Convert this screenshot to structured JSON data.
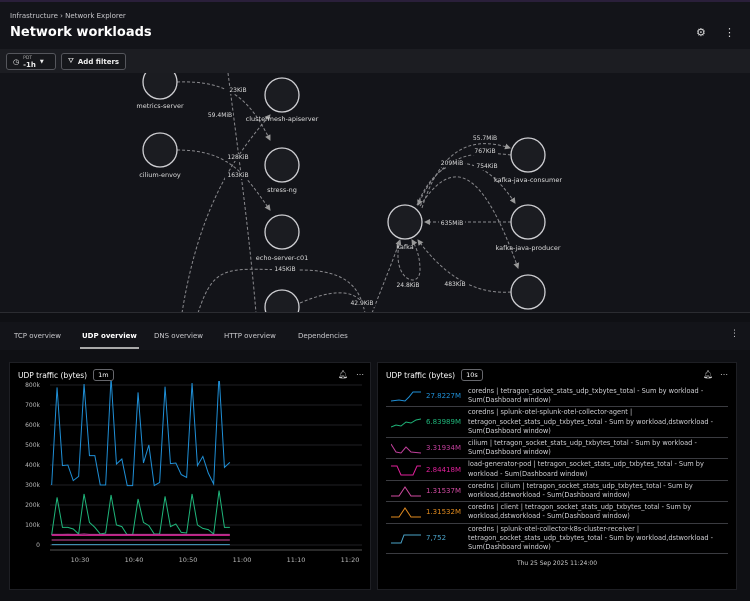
{
  "header": {
    "breadcrumb": [
      "Infrastructure",
      "Network Explorer"
    ],
    "title": "Network workloads",
    "icons": [
      "gear-icon",
      "more-vertical-icon"
    ]
  },
  "toolbar": {
    "timezone": "PDT",
    "time_range": "-1h",
    "add_filters": "Add filters"
  },
  "graph": {
    "nodes": [
      {
        "id": "metrics-server",
        "label": "metrics-server"
      },
      {
        "id": "cilium-envoy",
        "label": "cilium-envoy"
      },
      {
        "id": "clustermesh-apiserver",
        "label": "clustermesh-apiserver"
      },
      {
        "id": "stress-ng",
        "label": "stress-ng"
      },
      {
        "id": "echo-server-c01",
        "label": "echo-server-c01"
      },
      {
        "id": "bottom-node",
        "label": ""
      },
      {
        "id": "kafka",
        "label": "kafka"
      },
      {
        "id": "kafka-java-consumer",
        "label": "kafka-java-consumer"
      },
      {
        "id": "kafka-java-producer",
        "label": "kafka-java-producer"
      },
      {
        "id": "right-bottom-node",
        "label": ""
      }
    ],
    "edge_labels": [
      "23KiB",
      "59.4MiB",
      "128KiB",
      "163KiB",
      "145KiB",
      "42.9KiB",
      "24.8KiB",
      "55.7MiB",
      "767KiB",
      "209MiB",
      "754KiB",
      "635MiB",
      "483KiB"
    ]
  },
  "tabs": [
    {
      "label": "TCP overview"
    },
    {
      "label": "UDP overview",
      "active": true
    },
    {
      "label": "DNS overview"
    },
    {
      "label": "HTTP overview"
    },
    {
      "label": "Dependencies"
    }
  ],
  "left_panel": {
    "title": "UDP traffic (bytes)",
    "resolution": "1m"
  },
  "right_panel": {
    "title": "UDP traffic (bytes)",
    "resolution": "10s",
    "timestamp": "Thu 25 Sep 2025 11:24:00",
    "legend": [
      {
        "value": "27.8227M",
        "color": "#1f8fd6",
        "text": "coredns | tetragon_socket_stats_udp_txbytes_total - Sum by workload - Sum(Dashboard window)"
      },
      {
        "value": "6.83989M",
        "color": "#1fb57a",
        "text": "coredns | splunk-otel-splunk-otel-collector-agent | tetragon_socket_stats_udp_txbytes_total - Sum by workload,dstworkload - Sum(Dashboard window)"
      },
      {
        "value": "3.31934M",
        "color": "#c03f9b",
        "text": "cilium | tetragon_socket_stats_udp_txbytes_total - Sum by workload - Sum(Dashboard window)"
      },
      {
        "value": "2.84418M",
        "color": "#e0209a",
        "text": "load-generator-pod | tetragon_socket_stats_udp_txbytes_total - Sum by workload - Sum(Dashboard window)"
      },
      {
        "value": "1.31537M",
        "color": "#d04aa0",
        "text": "coredns | cilium | tetragon_socket_stats_udp_txbytes_total - Sum by workload,dstworkload - Sum(Dashboard window)"
      },
      {
        "value": "1.31532M",
        "color": "#e08a1e",
        "text": "coredns | client | tetragon_socket_stats_udp_txbytes_total - Sum by workload,dstworkload - Sum(Dashboard window)"
      },
      {
        "value": "7,752",
        "color": "#4aa3c8",
        "text": "coredns | splunk-otel-collector-k8s-cluster-receiver | tetragon_socket_stats_udp_txbytes_total - Sum by workload,dstworkload - Sum(Dashboard window)"
      }
    ]
  },
  "chart_data": {
    "type": "line",
    "title": "UDP traffic (bytes)",
    "x_start": "10:25",
    "x_step_minutes": 1,
    "x_ticks": [
      "10:30",
      "10:40",
      "10:50",
      "11:00",
      "11:10",
      "11:20"
    ],
    "y_ticks": [
      "0",
      "100k",
      "200k",
      "300k",
      "400k",
      "500k",
      "600k",
      "700k",
      "800k"
    ],
    "ylim": [
      0,
      850000
    ],
    "grid": true,
    "series": [
      {
        "color": "#1f8fd6",
        "values": [
          300,
          788,
          397,
          400,
          322,
          343,
          805,
          447,
          447,
          300,
          300,
          838,
          405,
          430,
          297,
          297,
          763,
          410,
          500,
          297,
          313,
          792,
          407,
          410,
          352,
          338,
          810,
          397,
          443,
          360,
          305,
          852,
          388,
          413
        ]
      },
      {
        "color": "#1fb57a",
        "values": [
          50,
          238,
          88,
          88,
          80,
          55,
          255,
          113,
          88,
          55,
          60,
          250,
          100,
          92,
          50,
          50,
          230,
          113,
          97,
          55,
          55,
          243,
          92,
          105,
          63,
          60,
          255,
          100,
          83,
          77,
          55,
          272,
          88,
          88
        ]
      },
      {
        "color": "#c03f9b",
        "values": [
          53,
          53,
          53,
          54,
          53,
          53,
          55,
          53,
          53,
          53,
          53,
          53,
          53,
          53,
          53,
          53,
          53,
          53,
          53,
          53,
          53,
          53,
          53,
          53,
          53,
          53,
          53,
          53,
          53,
          53,
          53,
          53,
          53,
          53
        ]
      },
      {
        "color": "#e0209a",
        "values": [
          48,
          48,
          48,
          48,
          48,
          48,
          48,
          48,
          48,
          48,
          48,
          48,
          48,
          48,
          48,
          48,
          48,
          48,
          48,
          48,
          48,
          48,
          48,
          48,
          48,
          48,
          48,
          48,
          48,
          48,
          48,
          48,
          48,
          48
        ]
      },
      {
        "color": "#d04aa0",
        "values": [
          25,
          25,
          25,
          25,
          25,
          25,
          25,
          25,
          25,
          25,
          25,
          25,
          25,
          25,
          25,
          25,
          25,
          25,
          25,
          25,
          25,
          25,
          25,
          25,
          25,
          25,
          25,
          25,
          25,
          25,
          25,
          25,
          25,
          25
        ]
      },
      {
        "color": "#4aa3c8",
        "values": [
          2,
          2,
          2,
          2,
          2,
          2,
          2,
          2,
          2,
          2,
          2,
          2,
          2,
          2,
          2,
          2,
          2,
          2,
          2,
          2,
          2,
          2,
          2,
          2,
          2,
          2,
          2,
          2,
          2,
          2,
          2,
          2,
          2,
          2
        ]
      }
    ],
    "y_unit_multiplier": 1000
  }
}
